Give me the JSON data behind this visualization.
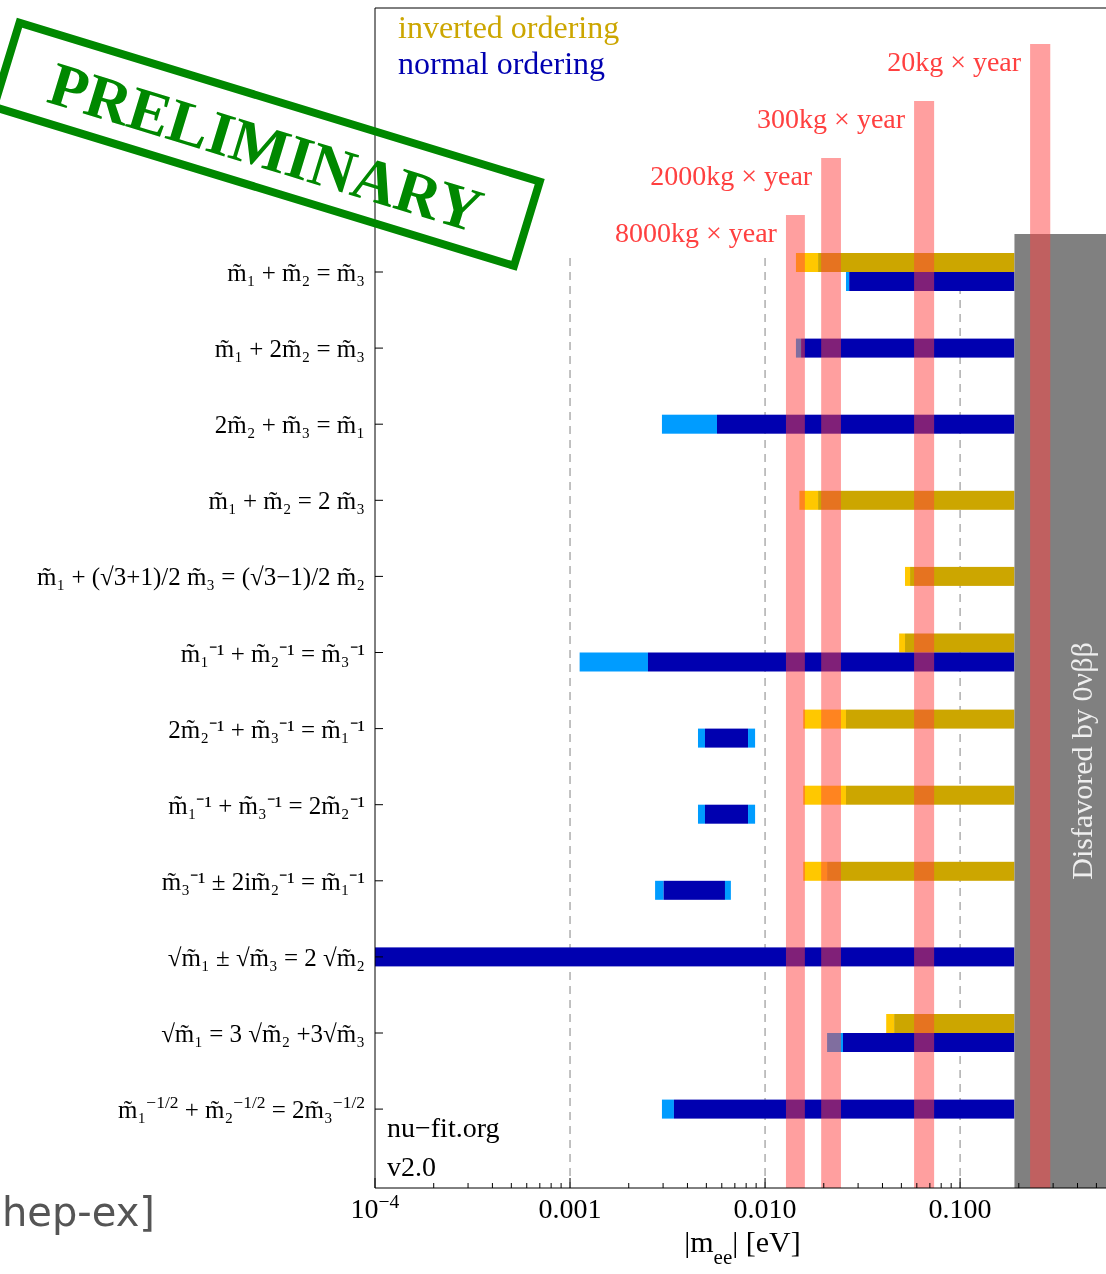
{
  "chart_data": {
    "type": "bar",
    "orientation": "horizontal",
    "log": "x",
    "xlabel": "|m$_{ee}$| [eV]",
    "categories": [
      "m̃₁ + m̃₂ = m̃₃",
      "m̃₁ + 2m̃₂ = m̃₃",
      "2m̃₂ + m̃₃ = m̃₁",
      "m̃₁ + m̃₂ = 2 m̃₃",
      "m̃₁ + (√3+1)/2 m̃₃ = (√3−1)/2 m̃₂",
      "m̃₁⁻¹ + m̃₂⁻¹ = m̃₃⁻¹",
      "2m̃₂⁻¹ + m̃₃⁻¹ = m̃₁⁻¹",
      "m̃₁⁻¹ + m̃₃⁻¹ = 2m̃₂⁻¹",
      "m̃₃⁻¹ ± 2im̃₂⁻¹ = m̃₁⁻¹",
      "√m̃₁ ± √m̃₃ = 2 √m̃₂",
      "√m̃₁ = 3 √m̃₂ +3√m̃₃",
      "m̃₁$^{−1/2}$ + m̃₂$^{−1/2}$ = 2m̃₃$^{−1/2}$"
    ],
    "xlim": [
      0.0001,
      0.56
    ],
    "xticks": [
      {
        "value": 0.0001,
        "label": "10$^{−4}$"
      },
      {
        "value": 0.0002,
        "label": null
      },
      {
        "value": 0.0003,
        "label": null
      },
      {
        "value": 0.0004,
        "label": null
      },
      {
        "value": 0.0005,
        "label": null
      },
      {
        "value": 0.0006,
        "label": null
      },
      {
        "value": 0.0007,
        "label": null
      },
      {
        "value": 0.0008,
        "label": null
      },
      {
        "value": 0.0009,
        "label": null
      },
      {
        "value": 0.001,
        "label": "0.001"
      },
      {
        "value": 0.002,
        "label": null
      },
      {
        "value": 0.003,
        "label": null
      },
      {
        "value": 0.004,
        "label": null
      },
      {
        "value": 0.005,
        "label": null
      },
      {
        "value": 0.006,
        "label": null
      },
      {
        "value": 0.007,
        "label": null
      },
      {
        "value": 0.008,
        "label": null
      },
      {
        "value": 0.009,
        "label": null
      },
      {
        "value": 0.01,
        "label": "0.010"
      },
      {
        "value": 0.02,
        "label": null
      },
      {
        "value": 0.03,
        "label": null
      },
      {
        "value": 0.04,
        "label": null
      },
      {
        "value": 0.05,
        "label": null
      },
      {
        "value": 0.06,
        "label": null
      },
      {
        "value": 0.07,
        "label": null
      },
      {
        "value": 0.08,
        "label": null
      },
      {
        "value": 0.09,
        "label": null
      },
      {
        "value": 0.1,
        "label": "0.100"
      },
      {
        "value": 0.2,
        "label": null
      },
      {
        "value": 0.3,
        "label": null
      },
      {
        "value": 0.4,
        "label": null
      },
      {
        "value": 0.5,
        "label": null
      }
    ],
    "grid": "x",
    "legend": "top left",
    "series": [
      {
        "color": "#ffc800",
        "base": [
          0.0144,
          null,
          null,
          0.015,
          0.0522,
          0.0487,
          0.0157,
          0.0157,
          0.0157,
          null,
          0.0418,
          null
        ],
        "values": [
          0.0043,
          null,
          null,
          0.0037,
          0.0032,
          0.0035,
          0.0103,
          0.0103,
          0.0051,
          null,
          0.0041,
          null
        ]
      },
      {
        "name": "inverted ordering",
        "color": "#cca600",
        "base": [
          0.0187,
          null,
          null,
          0.0187,
          0.0554,
          0.0522,
          0.026,
          0.026,
          0.0208,
          null,
          0.0459,
          null
        ],
        "values": [
          0.1713,
          null,
          null,
          0.1713,
          0.1346,
          0.1378,
          0.164,
          0.164,
          0.1692,
          null,
          0.1441,
          null
        ]
      },
      {
        "color": "#009cff",
        "base": [
          0.026,
          0.0144,
          0.00296,
          null,
          null,
          0.00112,
          0.00453,
          0.00453,
          0.00273,
          null,
          0.0208,
          0.00296
        ],
        "values": [
          0.001,
          0.0009,
          0.00271,
          null,
          null,
          0.00139,
          0.00039,
          0.00039,
          0.00029,
          null,
          0.0043,
          0.00045
        ]
      },
      {
        "name": "normal ordering",
        "color": "#0000b0",
        "base": [
          0.027,
          0.0153,
          0.00567,
          null,
          null,
          0.00251,
          0.00492,
          0.00492,
          0.00302,
          0.0001,
          0.0251,
          0.00341
        ],
        "values": [
          0.163,
          0.1747,
          0.18433,
          null,
          null,
          0.18749,
          0.00326,
          0.00326,
          0.00321,
          0.1899,
          0.1649,
          0.18659
        ]
      },
      {
        "color": "#009cff",
        "base": [
          null,
          null,
          null,
          null,
          null,
          null,
          0.00818,
          0.00818,
          0.00623,
          null,
          null,
          null
        ],
        "values": [
          null,
          null,
          null,
          null,
          null,
          null,
          0.00071,
          0.00071,
          0.00045,
          null,
          null,
          null
        ]
      }
    ],
    "bands": [
      {
        "axis": "x",
        "from": 0.19,
        "to": 0.56,
        "label": "Disfavored by 0νββ",
        "color": "#808080"
      },
      {
        "axis": "x",
        "from": 0.0128,
        "to": 0.016,
        "label": "8000kg × year",
        "color": "#ff4040"
      },
      {
        "axis": "x",
        "from": 0.0194,
        "to": 0.0245,
        "label": "2000kg × year",
        "color": "#ff4040"
      },
      {
        "axis": "x",
        "from": 0.0581,
        "to": 0.0736,
        "label": "300kg × year",
        "color": "#ff4040"
      },
      {
        "axis": "x",
        "from": 0.2286,
        "to": 0.29,
        "label": "20kg × year",
        "color": "#ff4040"
      }
    ],
    "annotations": [
      "PRELIMINARY",
      "nu−fit.org",
      "v2.0",
      "hep-ex]"
    ]
  }
}
